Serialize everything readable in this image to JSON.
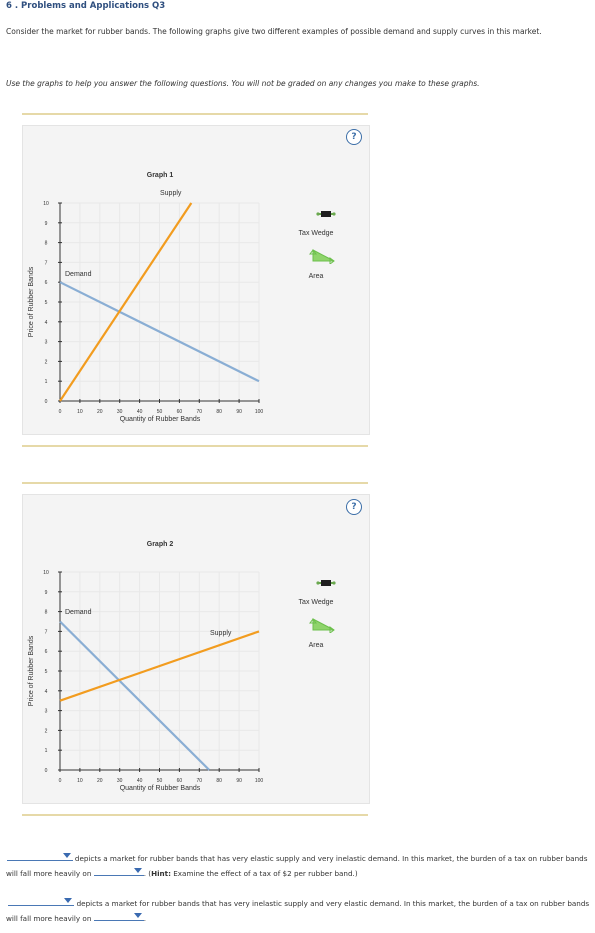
{
  "page": {
    "heading": "6 . Problems and Applications Q3",
    "intro": "Consider the market for rubber bands. The following graphs give two different examples of possible demand and supply curves in this market.",
    "instructions": "Use the graphs to help you answer the following questions. You will not be graded on any changes you make to these graphs.",
    "help_glyph": "?"
  },
  "legend": {
    "tax_wedge_label": "Tax Wedge",
    "area_label": "Area",
    "tax_wedge_icon": "tax-wedge-handle-icon",
    "area_icon": "green-triangle-icon",
    "tax_wedge_color": "#1e1e1e",
    "area_color": "#8fd46b"
  },
  "chart_data": [
    {
      "type": "line",
      "title": "Graph 1",
      "xlabel": "Quantity of Rubber Bands",
      "ylabel": "Price of Rubber Bands",
      "xlim": [
        0,
        100
      ],
      "ylim": [
        0,
        10
      ],
      "xticks": [
        0,
        10,
        20,
        30,
        40,
        50,
        60,
        70,
        80,
        90,
        100
      ],
      "yticks": [
        0,
        1,
        2,
        3,
        4,
        5,
        6,
        7,
        8,
        9,
        10
      ],
      "series": [
        {
          "name": "Demand",
          "color": "#8aaed4",
          "points": [
            [
              0,
              6
            ],
            [
              100,
              1
            ]
          ]
        },
        {
          "name": "Supply",
          "color": "#f29c1f",
          "points": [
            [
              0,
              0
            ],
            [
              66,
              10
            ]
          ]
        }
      ]
    },
    {
      "type": "line",
      "title": "Graph 2",
      "xlabel": "Quantity of Rubber Bands",
      "ylabel": "Price of Rubber Bands",
      "xlim": [
        0,
        100
      ],
      "ylim": [
        0,
        10
      ],
      "xticks": [
        0,
        10,
        20,
        30,
        40,
        50,
        60,
        70,
        80,
        90,
        100
      ],
      "yticks": [
        0,
        1,
        2,
        3,
        4,
        5,
        6,
        7,
        8,
        9,
        10
      ],
      "series": [
        {
          "name": "Demand",
          "color": "#8aaed4",
          "points": [
            [
              0,
              7.5
            ],
            [
              75,
              0
            ]
          ]
        },
        {
          "name": "Supply",
          "color": "#f29c1f",
          "points": [
            [
              0,
              3.5
            ],
            [
              100,
              7
            ]
          ]
        }
      ]
    }
  ],
  "questions": [
    {
      "text_a": "depicts a market for rubber bands that has very elastic supply and very inelastic demand. In this market, the burden of a tax on rubber bands will fall more heavily on",
      "hint_prefix": ". (",
      "hint_label": "Hint:",
      "hint_text": " Examine the effect of a tax of $2 per rubber band.)",
      "select1_value": "",
      "select2_value": ""
    },
    {
      "text_a": "depicts a market for rubber bands that has very inelastic supply and very elastic demand. In this market, the burden of a tax on rubber bands will fall more heavily on",
      "end": ".",
      "select1_value": "",
      "select2_value": ""
    }
  ]
}
